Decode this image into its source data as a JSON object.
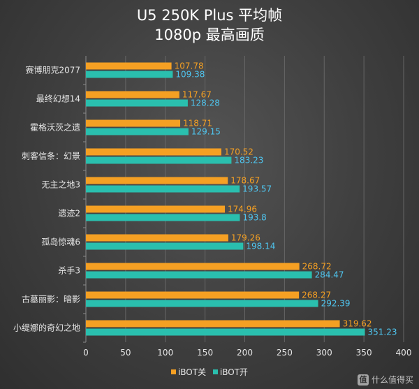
{
  "chart_data": {
    "type": "bar",
    "orientation": "horizontal",
    "title": "U5 250K Plus 平均帧",
    "subtitle": "1080p 最高画质",
    "categories": [
      "赛博朋克2077",
      "最终幻想14",
      "霍格沃茨之遗",
      "刺客信条：幻景",
      "无主之地3",
      "遗迹2",
      "孤岛惊魂6",
      "杀手3",
      "古墓丽影：暗影",
      "小缇娜的奇幻之地"
    ],
    "series": [
      {
        "name": "iBOT关",
        "color": "#f5a023",
        "values": [
          107.78,
          117.67,
          118.71,
          170.52,
          178.67,
          174.96,
          179.26,
          268.72,
          268.27,
          319.62
        ],
        "labels": [
          "107.78",
          "117.67",
          "118.71",
          "170.52",
          "178.67",
          "174.96",
          "179.26",
          "268.72",
          "268.27",
          "319.62"
        ]
      },
      {
        "name": "iBOT开",
        "color": "#2abfae",
        "values": [
          109.38,
          128.28,
          129.15,
          183.23,
          193.57,
          193.8,
          198.14,
          284.47,
          292.39,
          351.23
        ],
        "labels": [
          "109.38",
          "128.28",
          "129.15",
          "183.23",
          "193.57",
          "193.8",
          "198.14",
          "284.47",
          "292.39",
          "351.23"
        ]
      }
    ],
    "label_colors": [
      "#f5a023",
      "#4fc6f0"
    ],
    "xlim": [
      0,
      400
    ],
    "xticks": [
      "0",
      "50",
      "100",
      "150",
      "200",
      "250",
      "300",
      "350",
      "400"
    ],
    "grid": true,
    "legend_position": "bottom"
  },
  "watermark": {
    "badge": "值",
    "text": "什么值得买"
  }
}
